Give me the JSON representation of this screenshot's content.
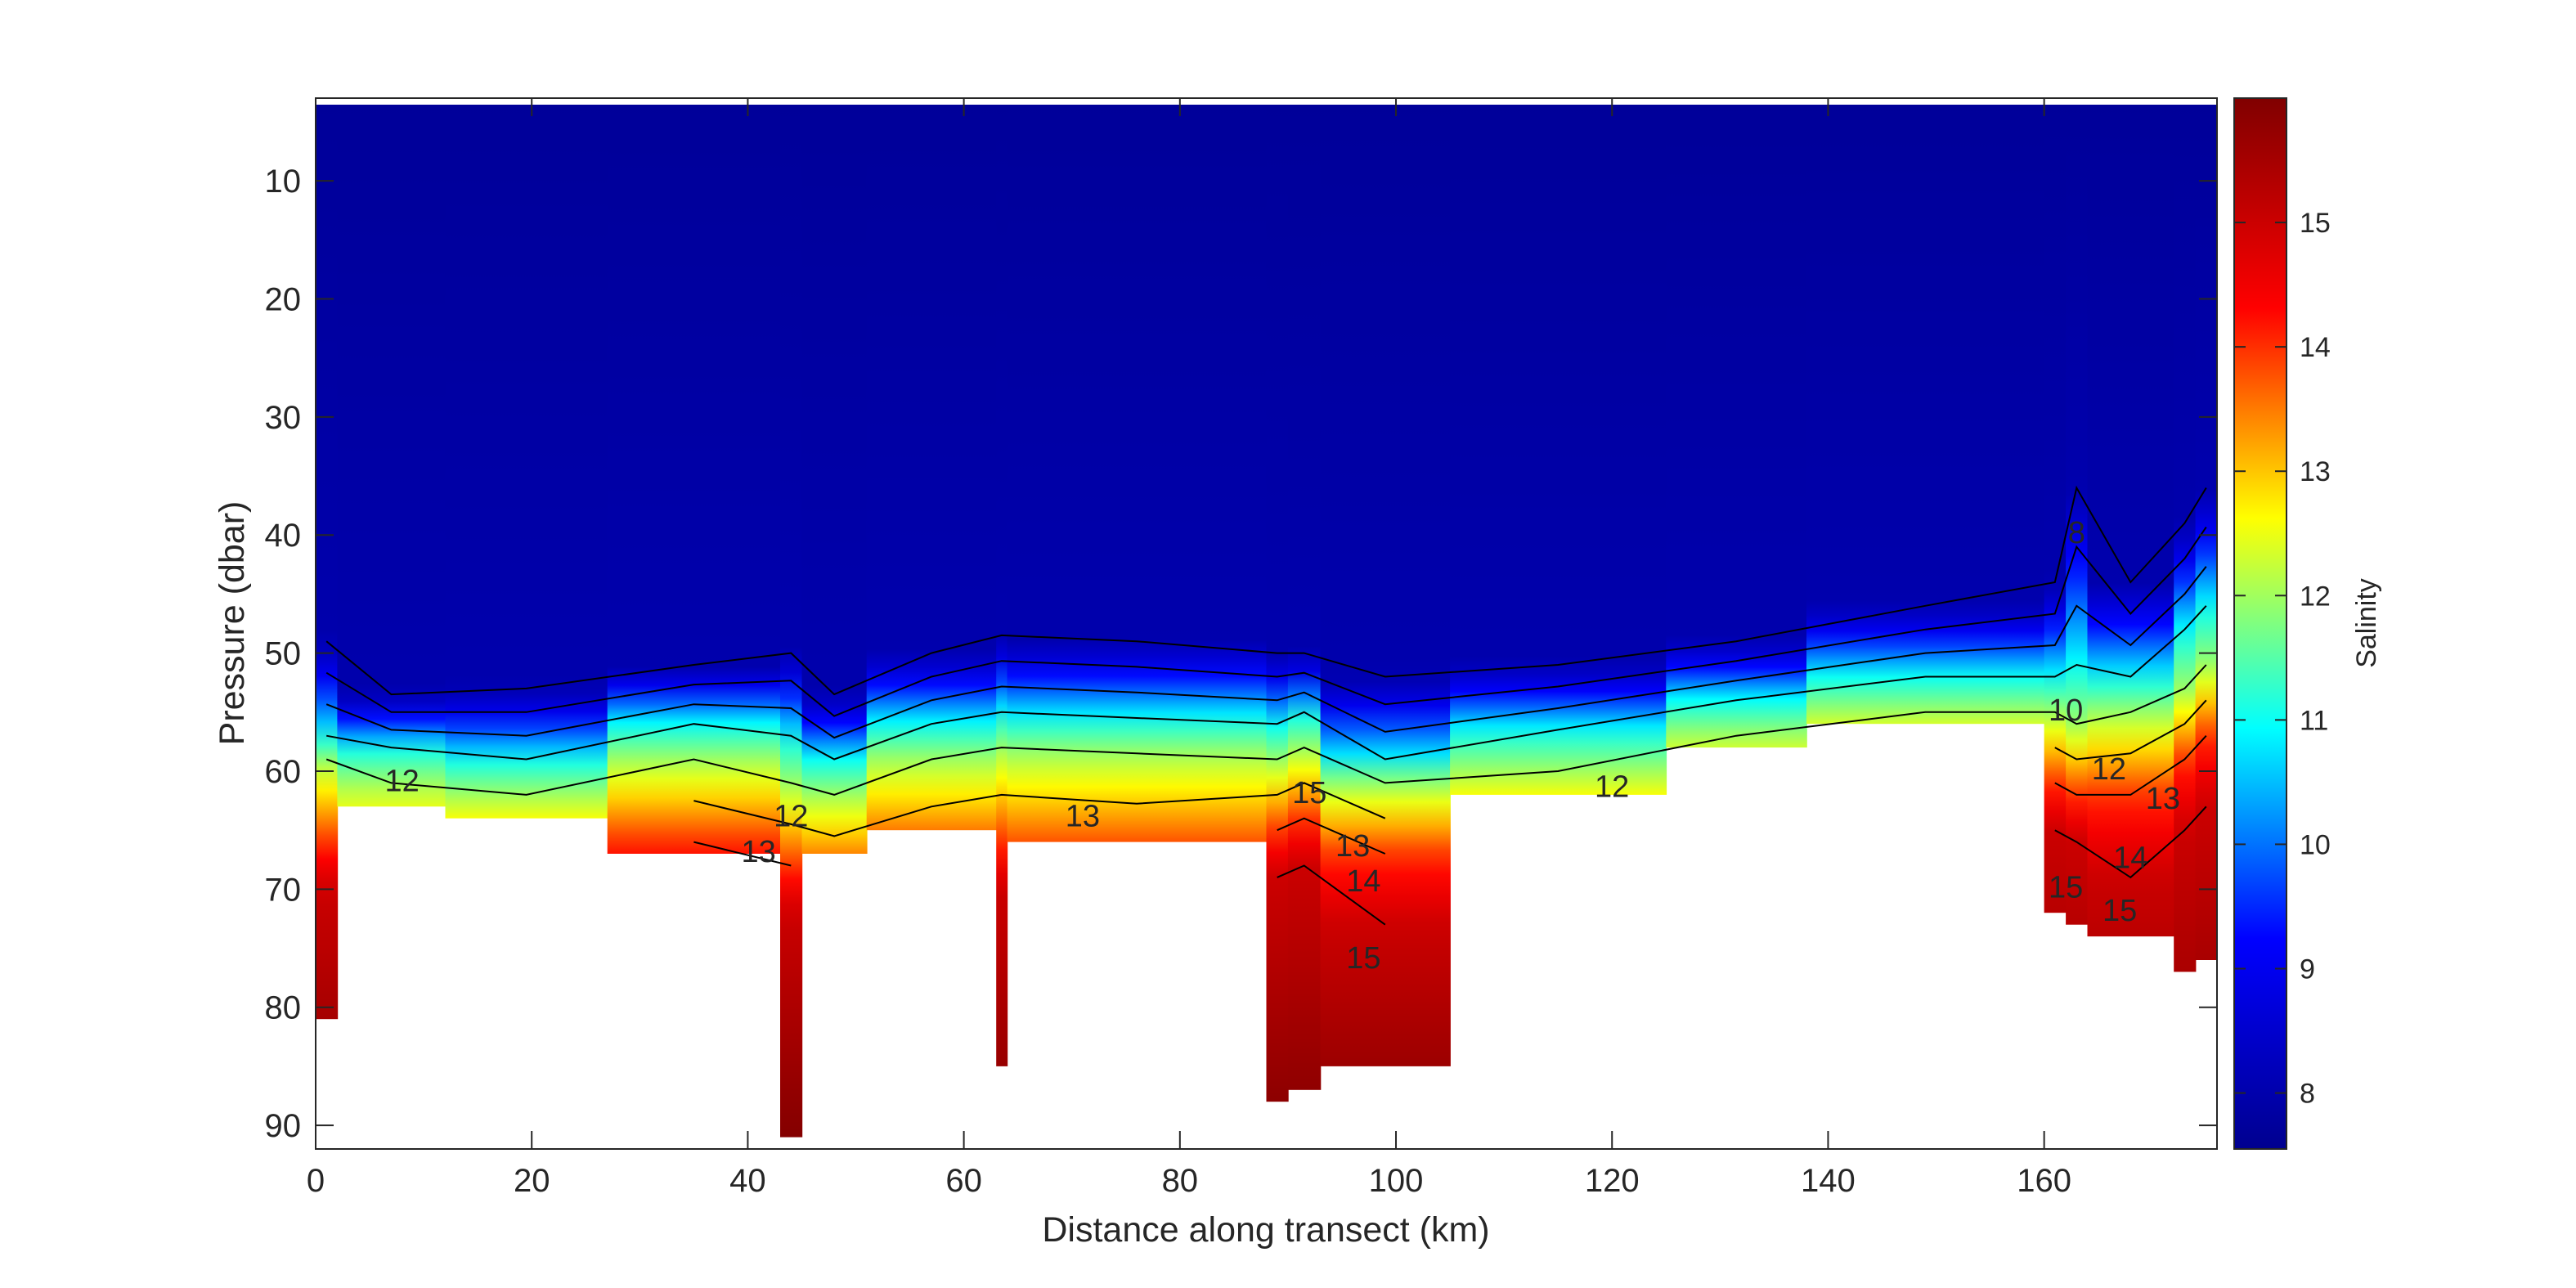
{
  "chart_data": {
    "type": "heatmap",
    "title": "",
    "xlabel": "Distance along transect (km)",
    "ylabel": "Pressure (dbar)",
    "xlim": [
      0,
      176
    ],
    "ylim": [
      92,
      3
    ],
    "y_direction": "reversed",
    "grid": false,
    "x_ticks": [
      0,
      20,
      40,
      60,
      80,
      100,
      120,
      140,
      160
    ],
    "y_ticks": [
      10,
      20,
      30,
      40,
      50,
      60,
      70,
      80,
      90
    ],
    "colorbar": {
      "label": "Salinity",
      "range": [
        7.55,
        16
      ],
      "ticks": [
        8,
        9,
        10,
        11,
        12,
        13,
        14,
        15
      ],
      "colormap": "jet",
      "colors": [
        "#00008F",
        "#0000FF",
        "#00FFFF",
        "#FFFF00",
        "#FF0000",
        "#800000"
      ],
      "placement": "right"
    },
    "contour_levels": [
      8,
      9,
      10,
      11,
      12,
      13,
      14,
      15
    ],
    "contour_labels": [
      {
        "text": "12",
        "x": 8,
        "y": 61
      },
      {
        "text": "12",
        "x": 44,
        "y": 64
      },
      {
        "text": "13",
        "x": 41,
        "y": 67
      },
      {
        "text": "13",
        "x": 71,
        "y": 64
      },
      {
        "text": "15",
        "x": 92,
        "y": 62
      },
      {
        "text": "13",
        "x": 96,
        "y": 66.5
      },
      {
        "text": "14",
        "x": 97,
        "y": 69.5
      },
      {
        "text": "15",
        "x": 97,
        "y": 76
      },
      {
        "text": "12",
        "x": 120,
        "y": 61.5
      },
      {
        "text": "8",
        "x": 163,
        "y": 40
      },
      {
        "text": "10",
        "x": 162,
        "y": 55
      },
      {
        "text": "12",
        "x": 166,
        "y": 60
      },
      {
        "text": "13",
        "x": 171,
        "y": 62.5
      },
      {
        "text": "14",
        "x": 168,
        "y": 67.5
      },
      {
        "text": "15",
        "x": 162,
        "y": 70
      },
      {
        "text": "15",
        "x": 167,
        "y": 72
      }
    ],
    "profiles": [
      {
        "x0": 0,
        "x1": 2,
        "bottom": 81,
        "s8": 49,
        "s11": 57,
        "s12": 59,
        "s14": 66,
        "s15": 70
      },
      {
        "x0": 2,
        "x1": 12,
        "bottom": 63,
        "s8": 53.5,
        "s11": 58,
        "s12": 61,
        "s14": 70,
        "s15": 75
      },
      {
        "x0": 12,
        "x1": 27,
        "bottom": 64,
        "s8": 53,
        "s11": 59,
        "s12": 62,
        "s14": 69,
        "s15": 74
      },
      {
        "x0": 27,
        "x1": 43,
        "bottom": 67,
        "s8": 51,
        "s11": 56,
        "s12": 59,
        "s14": 66,
        "s15": 71
      },
      {
        "x0": 43,
        "x1": 45,
        "bottom": 91,
        "s8": 50,
        "s11": 57,
        "s12": 61,
        "s14": 68,
        "s15": 72
      },
      {
        "x0": 45,
        "x1": 51,
        "bottom": 67,
        "s8": 53.5,
        "s11": 59,
        "s12": 62,
        "s14": 69,
        "s15": 73
      },
      {
        "x0": 51,
        "x1": 63,
        "bottom": 65,
        "s8": 50,
        "s11": 56,
        "s12": 59,
        "s14": 67,
        "s15": 72
      },
      {
        "x0": 63,
        "x1": 64,
        "bottom": 85,
        "s8": 48.5,
        "s11": 55,
        "s12": 58,
        "s14": 66,
        "s15": 70
      },
      {
        "x0": 64,
        "x1": 88,
        "bottom": 66,
        "s8": 49,
        "s11": 55.5,
        "s12": 58.5,
        "s14": 67,
        "s15": 72
      },
      {
        "x0": 88,
        "x1": 90,
        "bottom": 88,
        "s8": 50,
        "s11": 56,
        "s12": 59,
        "s14": 65,
        "s15": 69
      },
      {
        "x0": 90,
        "x1": 93,
        "bottom": 87,
        "s8": 50,
        "s11": 55,
        "s12": 58,
        "s14": 64,
        "s15": 68
      },
      {
        "x0": 93,
        "x1": 105,
        "bottom": 85,
        "s8": 52,
        "s11": 59,
        "s12": 61,
        "s14": 67,
        "s15": 73
      },
      {
        "x0": 105,
        "x1": 125,
        "bottom": 62,
        "s8": 51,
        "s11": 56.5,
        "s12": 60,
        "s14": 67,
        "s15": 72
      },
      {
        "x0": 125,
        "x1": 138,
        "bottom": 58,
        "s8": 49,
        "s11": 54,
        "s12": 57,
        "s14": 64,
        "s15": 69
      },
      {
        "x0": 138,
        "x1": 160,
        "bottom": 56,
        "s8": 46,
        "s11": 52,
        "s12": 55,
        "s14": 61,
        "s15": 66
      },
      {
        "x0": 160,
        "x1": 162,
        "bottom": 72,
        "s8": 44,
        "s11": 52,
        "s12": 55,
        "s14": 61,
        "s15": 65
      },
      {
        "x0": 162,
        "x1": 164,
        "bottom": 73,
        "s8": 36,
        "s11": 51,
        "s12": 56,
        "s14": 62,
        "s15": 66
      },
      {
        "x0": 164,
        "x1": 172,
        "bottom": 74,
        "s8": 44,
        "s11": 52,
        "s12": 55,
        "s14": 62,
        "s15": 69
      },
      {
        "x0": 172,
        "x1": 174,
        "bottom": 77,
        "s8": 39,
        "s11": 48,
        "s12": 53,
        "s14": 59,
        "s15": 65
      },
      {
        "x0": 174,
        "x1": 176,
        "bottom": 76,
        "s8": 36,
        "s11": 46,
        "s12": 51,
        "s14": 57,
        "s15": 63
      }
    ]
  }
}
